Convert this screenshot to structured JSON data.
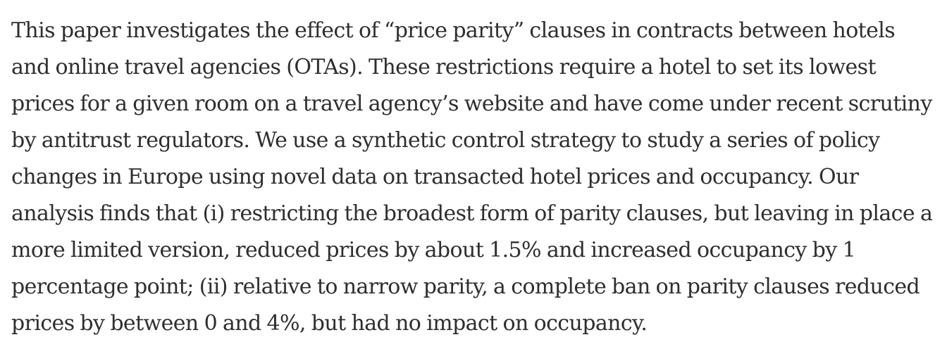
{
  "abstract": {
    "lines": [
      "This paper investigates the effect of “price parity” clauses in contracts between hotels",
      "and online travel agencies (OTAs). These restrictions require a hotel to set its lowest",
      "prices for a given room on a travel agency’s website and have come under recent scrutiny",
      "by antitrust regulators. We use a synthetic control strategy to study a series of policy",
      "changes in Europe using novel data on transacted hotel prices and occupancy. Our",
      "analysis finds that (i) restricting the broadest form of parity clauses, but leaving in place a",
      "more limited version, reduced prices by about 1.5% and increased occupancy by 1",
      "percentage point; (ii) relative to narrow parity, a complete ban on parity clauses reduced",
      "prices by between 0 and 4%, but had no impact on occupancy."
    ]
  }
}
